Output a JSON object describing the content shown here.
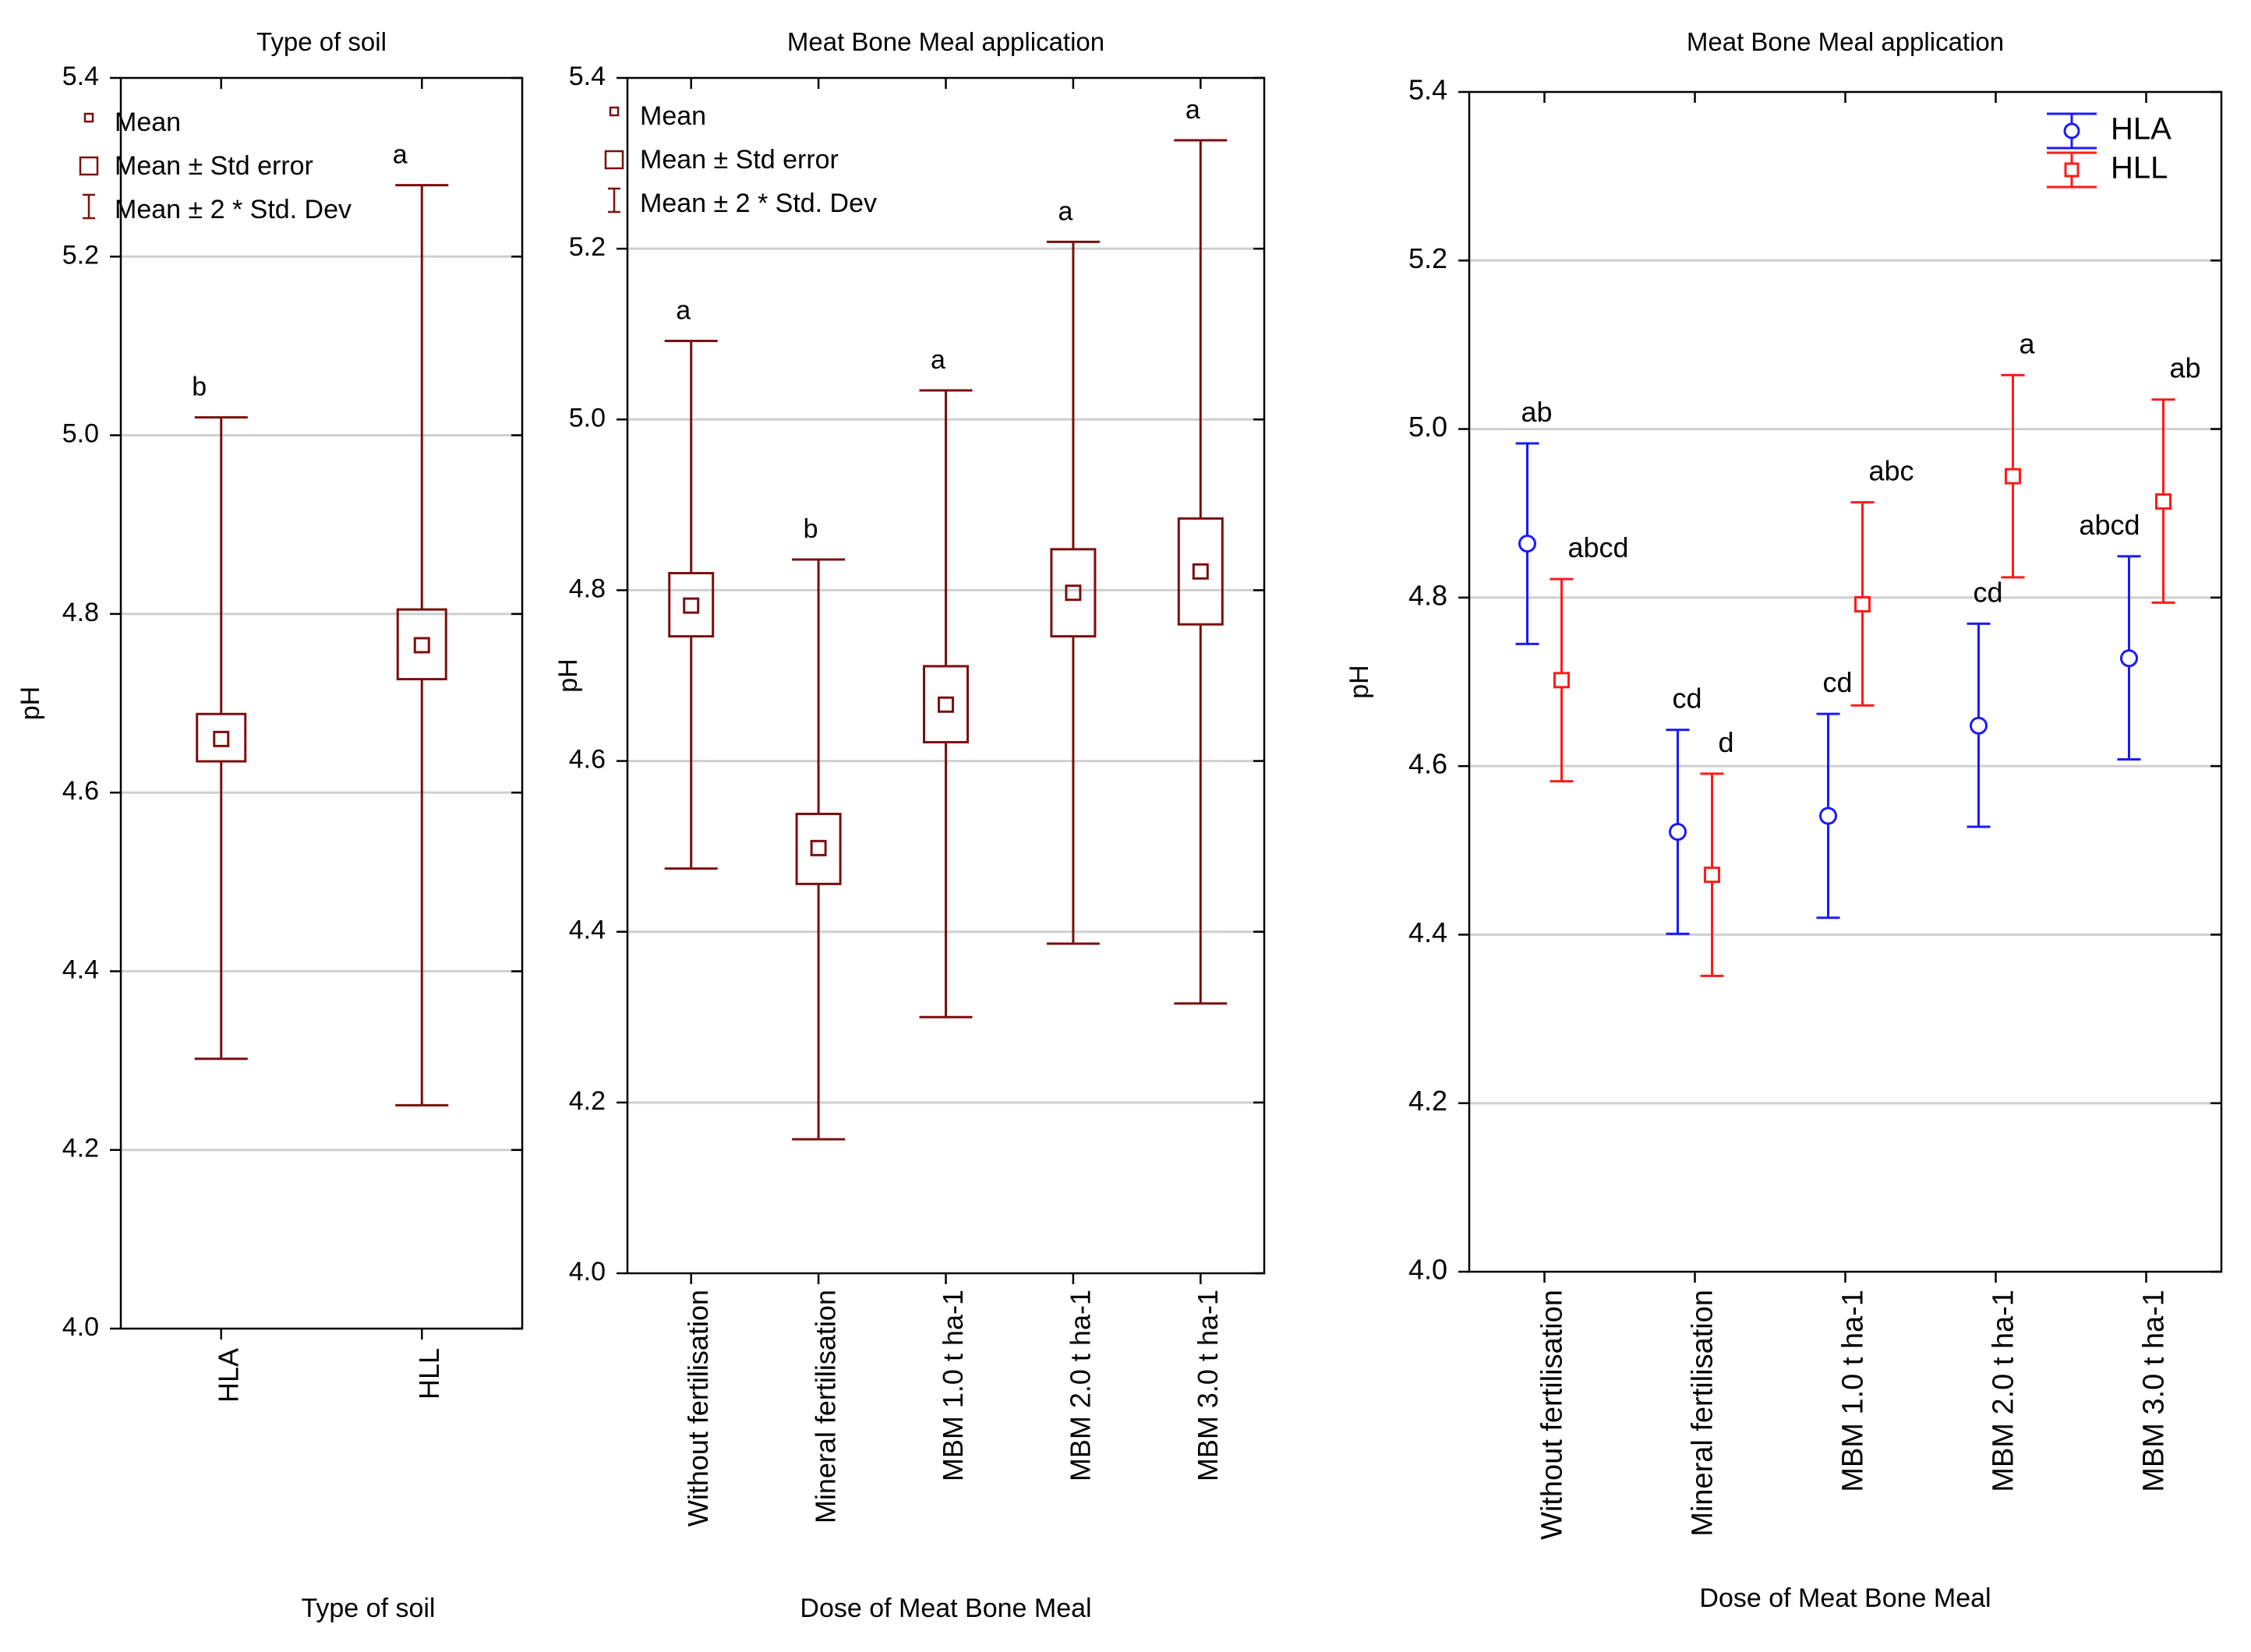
{
  "colors": {
    "dark_red": "#7b0f0f",
    "blue": "#1a1aff",
    "red": "#ff1a1a",
    "grid": "#cfcfcf",
    "axis": "#000000"
  },
  "chart_data": [
    {
      "type": "box",
      "title": "Type of soil",
      "xlabel": "Type of soil",
      "ylabel": "pH",
      "ylim": [
        4.0,
        5.4
      ],
      "yticks": [
        "4.0",
        "4.2",
        "4.4",
        "4.6",
        "4.8",
        "5.0",
        "5.2",
        "5.4"
      ],
      "grid": true,
      "legend_position": "top-left",
      "legend": [
        "Mean",
        "Mean ± Std error",
        "Mean ± 2 * Std. Dev"
      ],
      "categories": [
        "HLA",
        "HLL"
      ],
      "mean": [
        4.66,
        4.765
      ],
      "se_low": [
        4.635,
        4.727
      ],
      "se_high": [
        4.688,
        4.805
      ],
      "sd2_low": [
        4.302,
        4.25
      ],
      "sd2_high": [
        5.02,
        5.28
      ],
      "letters": [
        "b",
        "a"
      ]
    },
    {
      "type": "box",
      "title": "Meat Bone Meal application",
      "xlabel": "Dose of Meat Bone Meal",
      "ylabel": "pH",
      "ylim": [
        4.0,
        5.4
      ],
      "yticks": [
        "4.0",
        "4.2",
        "4.4",
        "4.6",
        "4.8",
        "5.0",
        "5.2",
        "5.4"
      ],
      "grid": true,
      "legend_position": "top-left",
      "legend": [
        "Mean",
        "Mean ± Std error",
        "Mean ± 2 * Std. Dev"
      ],
      "categories": [
        "Without fertilisation",
        "Mineral fertilisation",
        "MBM 1.0 t ha-1",
        "MBM 2.0 t ha-1",
        "MBM 3.0 t ha-1"
      ],
      "mean": [
        4.782,
        4.498,
        4.666,
        4.797,
        4.822
      ],
      "se_low": [
        4.746,
        4.456,
        4.622,
        4.746,
        4.76
      ],
      "se_high": [
        4.82,
        4.538,
        4.711,
        4.848,
        4.884
      ],
      "sd2_low": [
        4.474,
        4.157,
        4.3,
        4.386,
        4.316
      ],
      "sd2_high": [
        5.092,
        4.836,
        5.034,
        5.208,
        5.327
      ],
      "letters": [
        "a",
        "b",
        "a",
        "a",
        "a"
      ]
    },
    {
      "type": "errorbar",
      "title": "Meat Bone Meal application",
      "xlabel": "Dose of Meat Bone Meal",
      "ylabel": "pH",
      "ylim": [
        4.0,
        5.4
      ],
      "yticks": [
        "4.0",
        "4.2",
        "4.4",
        "4.6",
        "4.8",
        "5.0",
        "5.2",
        "5.4"
      ],
      "grid": true,
      "legend_position": "top-right",
      "categories": [
        "Without fertilisation",
        "Mineral fertilisation",
        "MBM 1.0 t ha-1",
        "MBM 2.0 t ha-1",
        "MBM 3.0 t ha-1"
      ],
      "series": [
        {
          "name": "HLA",
          "marker": "circle",
          "color": "#1a1aff",
          "values": [
            4.864,
            4.522,
            4.541,
            4.648,
            4.728
          ],
          "low": [
            4.745,
            4.401,
            4.42,
            4.528,
            4.608
          ],
          "high": [
            4.983,
            4.643,
            4.662,
            4.769,
            4.849
          ],
          "letters": [
            "ab",
            "cd",
            "cd",
            "cd",
            "abcd"
          ]
        },
        {
          "name": "HLL",
          "marker": "square",
          "color": "#ff1a1a",
          "values": [
            4.702,
            4.471,
            4.792,
            4.944,
            4.914
          ],
          "low": [
            4.582,
            4.351,
            4.672,
            4.824,
            4.794
          ],
          "high": [
            4.822,
            4.591,
            4.913,
            5.064,
            5.035
          ],
          "letters": [
            "abcd",
            "d",
            "abc",
            "a",
            "ab"
          ]
        }
      ]
    }
  ]
}
